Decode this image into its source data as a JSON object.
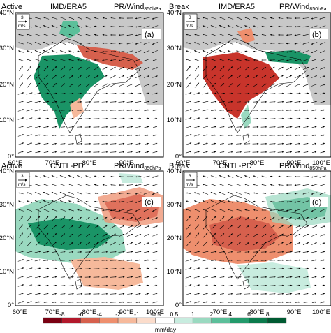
{
  "panels": [
    {
      "id": "a",
      "left": "Active",
      "center": "IMD/ERA5",
      "right_main": "PR/Wind",
      "right_sub": "850hPa",
      "letter": "(a)",
      "mask_ocean": true
    },
    {
      "id": "b",
      "left": "Break",
      "center": "IMD/ERA5",
      "right_main": "PR/Wind",
      "right_sub": "850hPa",
      "letter": "(b)",
      "mask_ocean": true
    },
    {
      "id": "c",
      "left": "Active",
      "center": "CNTL-PD",
      "right_main": "PR/Wind",
      "right_sub": "850hPa",
      "letter": "(c)",
      "mask_ocean": false
    },
    {
      "id": "d",
      "left": "Break",
      "center": "CNTL-PD",
      "right_main": "PR/Wind",
      "right_sub": "850hPa",
      "letter": "(d)",
      "mask_ocean": false
    }
  ],
  "axes": {
    "x_ticks": [
      "60°E",
      "70°E",
      "80°E",
      "90°E",
      "100°E"
    ],
    "y_ticks": [
      "0°",
      "10°N",
      "20°N",
      "30°N",
      "40°N"
    ]
  },
  "reference_vector": {
    "value": "3",
    "unit": "m/s"
  },
  "colorbar": {
    "tick_labels": [
      "-8",
      "-6",
      "-4",
      "-2",
      "-1",
      "-0.5",
      "0.5",
      "1",
      "2",
      "4",
      "6",
      "8"
    ],
    "unit": "mm/day",
    "colors": [
      "#7a0012",
      "#b2182b",
      "#d6604d",
      "#ee8f6e",
      "#f6b99b",
      "#fbdccb",
      "#ffffff",
      "#c8ecdf",
      "#9ad9c0",
      "#5cbf9a",
      "#239a6b",
      "#0b7a4c",
      "#005a32"
    ]
  },
  "colors": {
    "land_mask": "#c8c8c8",
    "coast": "#000000",
    "frame": "#000000",
    "arrow": "#000000"
  }
}
